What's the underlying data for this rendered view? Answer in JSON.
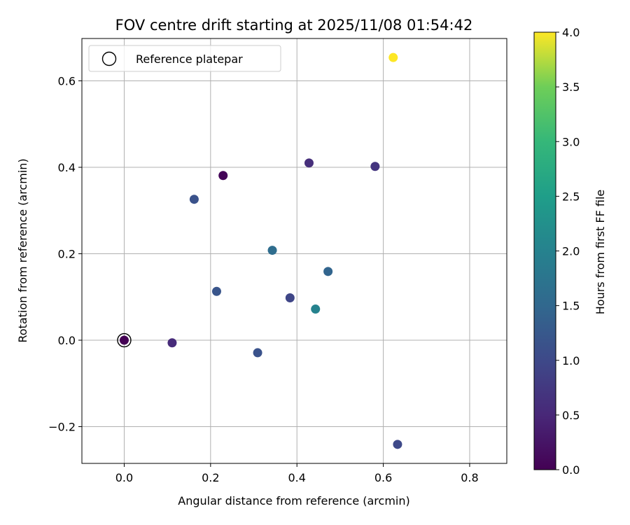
{
  "chart_data": {
    "type": "scatter",
    "title": "FOV centre drift starting at 2025/11/08 01:54:42",
    "xlabel": "Angular distance from reference (arcmin)",
    "ylabel": "Rotation from reference (arcmin)",
    "xlim": [
      -0.098,
      0.886
    ],
    "ylim": [
      -0.285,
      0.698
    ],
    "xticks": [
      0.0,
      0.2,
      0.4,
      0.6,
      0.8
    ],
    "xtick_labels": [
      "0.0",
      "0.2",
      "0.4",
      "0.6",
      "0.8"
    ],
    "yticks": [
      -0.2,
      0.0,
      0.2,
      0.4,
      0.6
    ],
    "ytick_labels": [
      "−0.2",
      "0.0",
      "0.2",
      "0.4",
      "0.6"
    ],
    "grid": true,
    "legend": {
      "entries": [
        "Reference platepar"
      ],
      "placement": "top-left"
    },
    "colorbar": {
      "label": "Hours from first FF file",
      "range": [
        0.0,
        4.0
      ],
      "ticks": [
        0.0,
        0.5,
        1.0,
        1.5,
        2.0,
        2.5,
        3.0,
        3.5,
        4.0
      ],
      "tick_labels": [
        "0.0",
        "0.5",
        "1.0",
        "1.5",
        "2.0",
        "2.5",
        "3.0",
        "3.5",
        "4.0"
      ],
      "colormap": "viridis"
    },
    "points": [
      {
        "x": 0.0,
        "y": 0.0,
        "hours": 0.0
      },
      {
        "x": 0.229,
        "y": 0.381,
        "hours": 0.05
      },
      {
        "x": 0.111,
        "y": -0.006,
        "hours": 0.55
      },
      {
        "x": 0.428,
        "y": 0.41,
        "hours": 0.6
      },
      {
        "x": 0.581,
        "y": 0.402,
        "hours": 0.7
      },
      {
        "x": 0.384,
        "y": 0.098,
        "hours": 0.95
      },
      {
        "x": 0.633,
        "y": -0.241,
        "hours": 1.0
      },
      {
        "x": 0.162,
        "y": 0.326,
        "hours": 1.15
      },
      {
        "x": 0.309,
        "y": -0.029,
        "hours": 1.15
      },
      {
        "x": 0.214,
        "y": 0.113,
        "hours": 1.2
      },
      {
        "x": 0.472,
        "y": 0.159,
        "hours": 1.45
      },
      {
        "x": 0.343,
        "y": 0.208,
        "hours": 1.6
      },
      {
        "x": 0.443,
        "y": 0.072,
        "hours": 2.0
      },
      {
        "x": 0.623,
        "y": 0.654,
        "hours": 4.0
      }
    ],
    "reference_point": {
      "x": 0.0,
      "y": 0.0
    }
  }
}
